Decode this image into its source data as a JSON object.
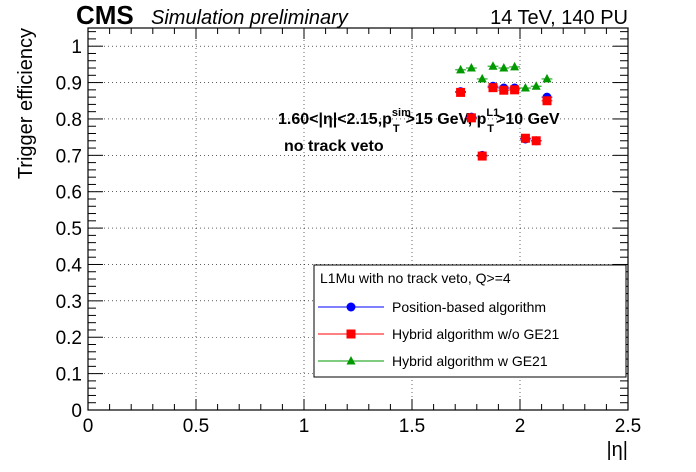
{
  "header": {
    "experiment": "CMS",
    "status": "Simulation preliminary",
    "conditions": "14 TeV, 140 PU"
  },
  "annotation": {
    "line1_prefix": "1.60<|η|<2.15,p",
    "line1_sim_sup": "sim",
    "line1_T_sub1": "T",
    "line1_mid": ">15 GeV, p",
    "line1_L1_sup": "L1",
    "line1_T_sub2": "T",
    "line1_suffix": ">10 GeV",
    "line2": "no track veto"
  },
  "chart_data": {
    "type": "scatter",
    "xlabel": "|η|",
    "ylabel": "Trigger efficiency",
    "xlim": [
      0,
      2.5
    ],
    "ylim": [
      0,
      1.05
    ],
    "x_ticks": [
      "0",
      "0.5",
      "1",
      "1.5",
      "2",
      "2.5"
    ],
    "y_ticks": [
      "0",
      "0.1",
      "0.2",
      "0.3",
      "0.4",
      "0.5",
      "0.6",
      "0.7",
      "0.8",
      "0.9",
      "1"
    ],
    "grid": true,
    "legend_title": "L1Mu with no track veto, Q>=4",
    "legend_position": "bottom-right",
    "series": [
      {
        "name": "Position-based algorithm",
        "color": "#0000ff",
        "marker": "circle",
        "x": [
          1.725,
          1.775,
          1.825,
          1.875,
          1.925,
          1.975,
          2.025,
          2.075,
          2.125
        ],
        "y": [
          0.875,
          0.805,
          0.7,
          0.89,
          0.885,
          0.885,
          0.745,
          0.74,
          0.86
        ]
      },
      {
        "name": "Hybrid algorithm w/o GE21",
        "color": "#ff0000",
        "marker": "square",
        "x": [
          1.725,
          1.775,
          1.825,
          1.875,
          1.925,
          1.975,
          2.025,
          2.075,
          2.125
        ],
        "y": [
          0.873,
          0.803,
          0.698,
          0.886,
          0.879,
          0.88,
          0.747,
          0.74,
          0.85
        ]
      },
      {
        "name": "Hybrid algorithm w GE21",
        "color": "#009900",
        "marker": "triangle",
        "x": [
          1.725,
          1.775,
          1.825,
          1.875,
          1.925,
          1.975,
          2.025,
          2.075,
          2.125
        ],
        "y": [
          0.935,
          0.94,
          0.91,
          0.945,
          0.94,
          0.943,
          0.885,
          0.89,
          0.91
        ]
      }
    ]
  }
}
